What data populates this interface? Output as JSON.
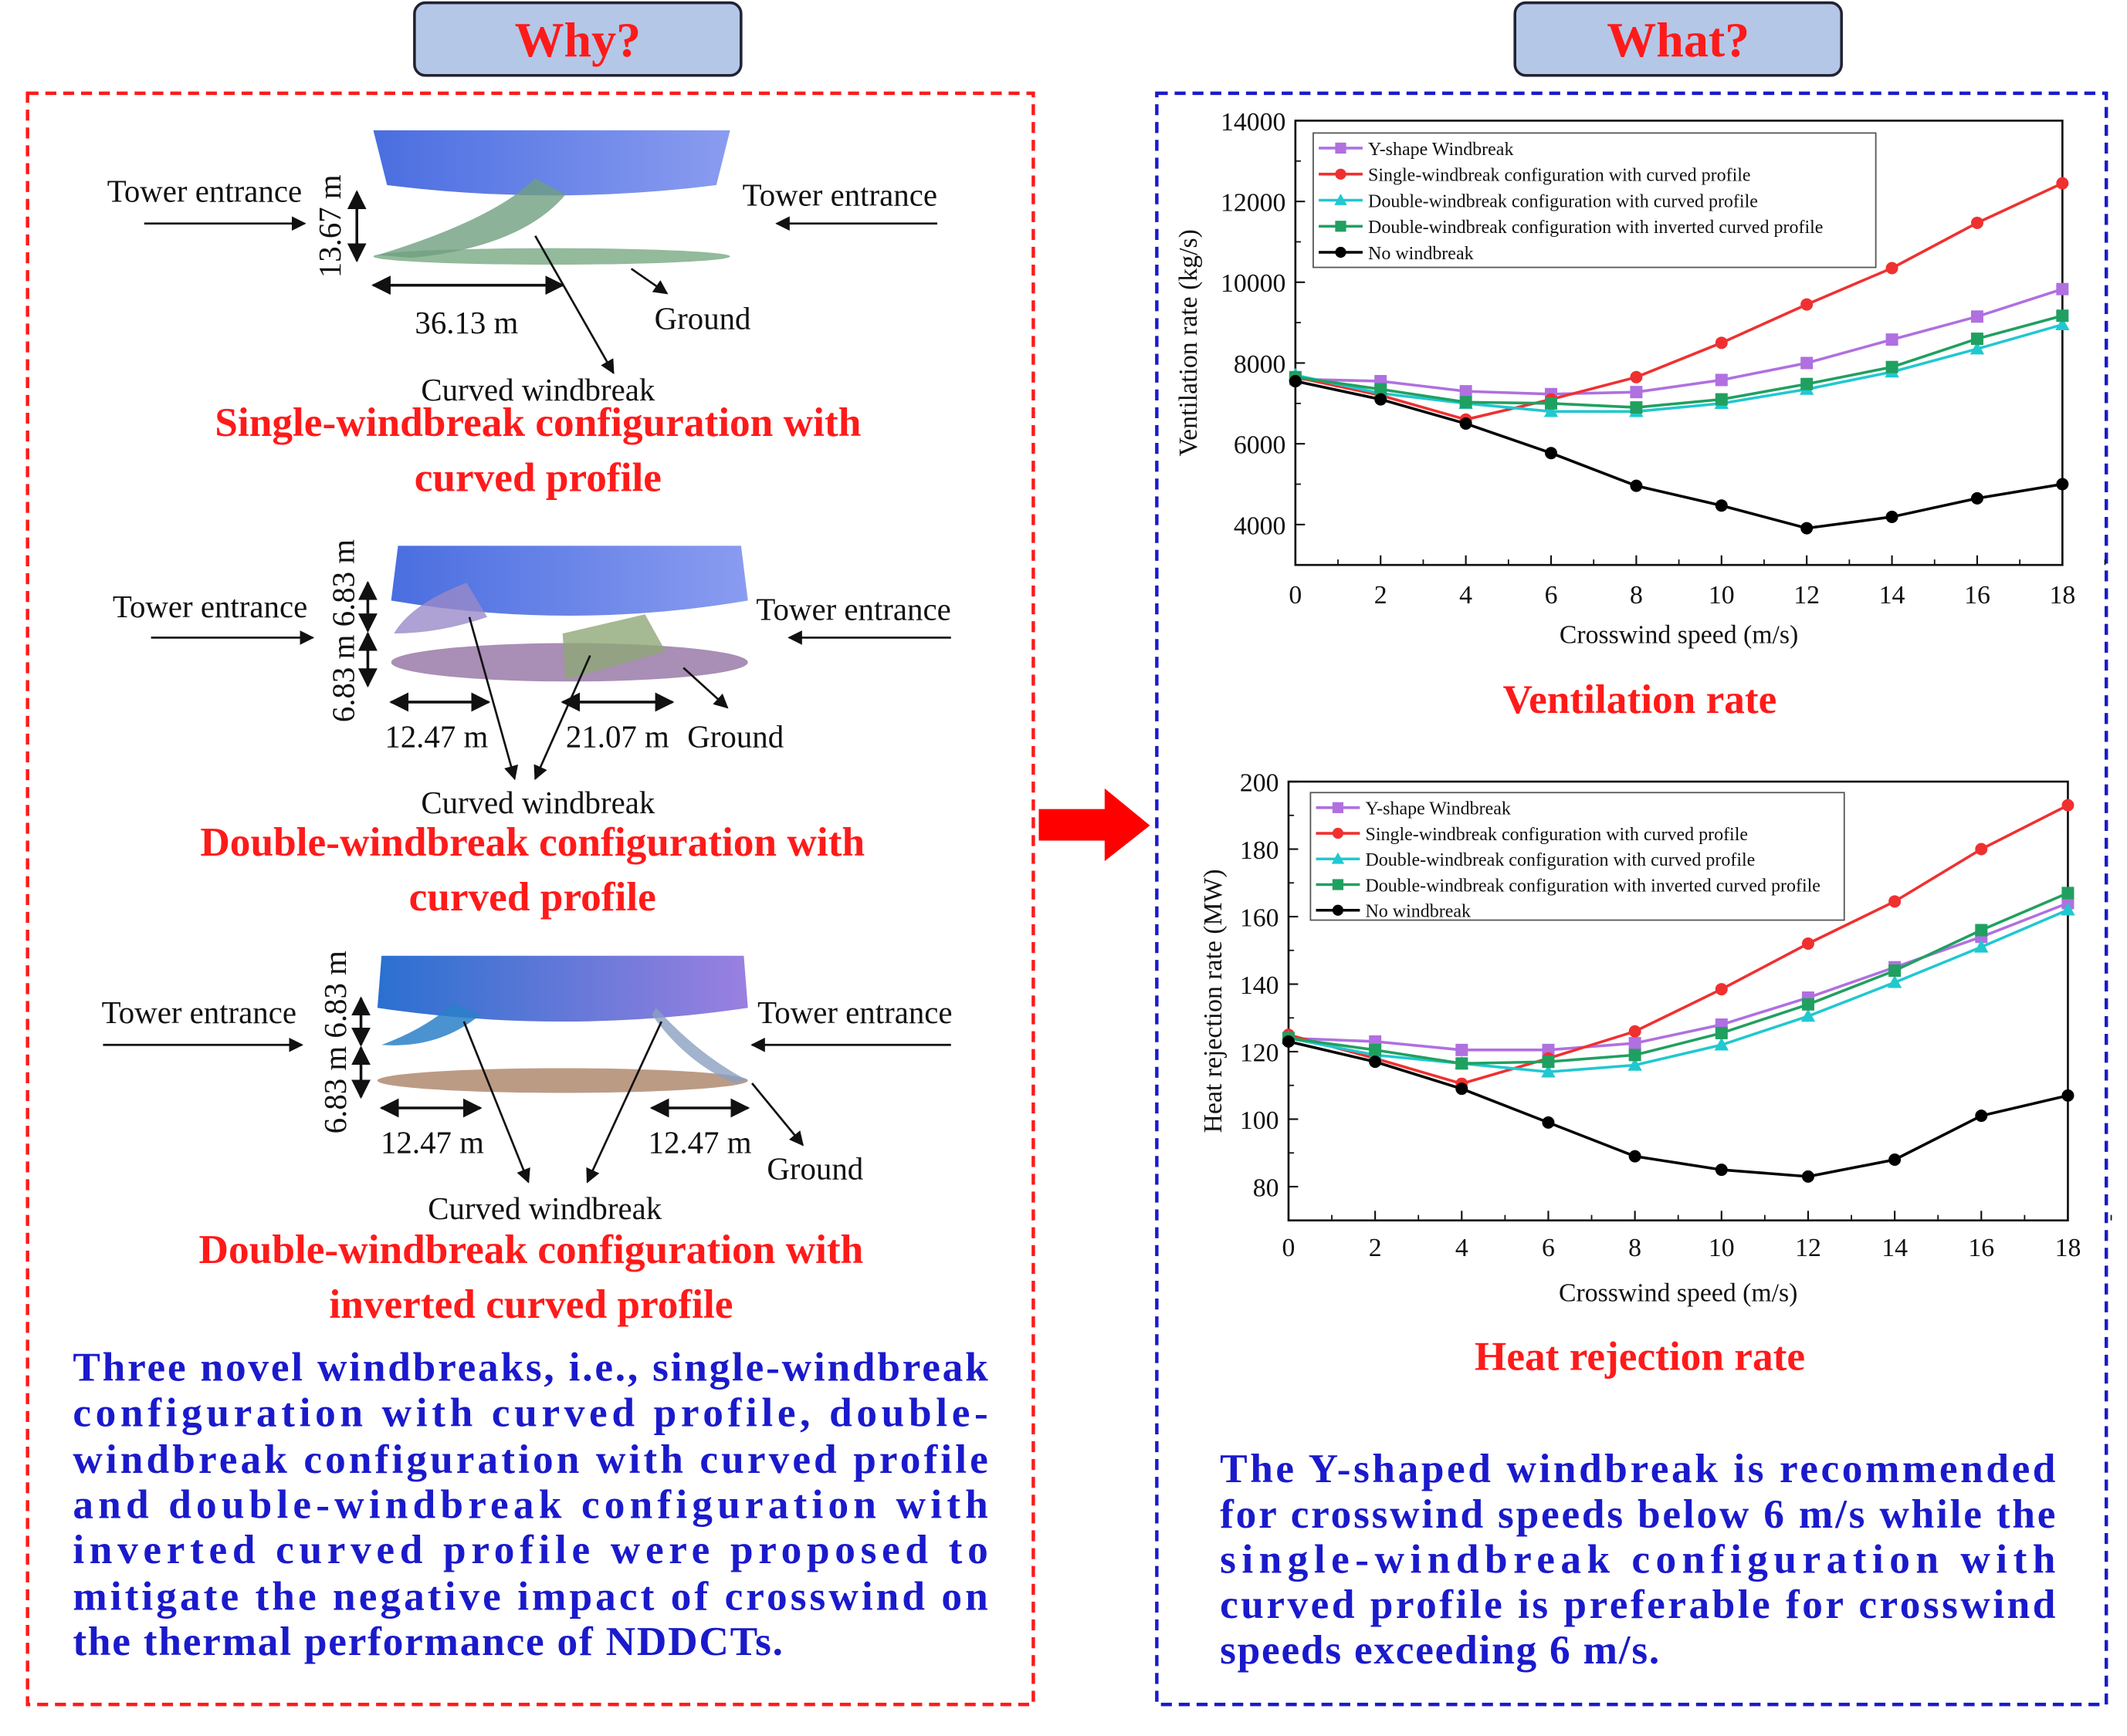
{
  "headers": {
    "why": "Why?",
    "what": "What?"
  },
  "diagrams": [
    {
      "tower_left": "Tower entrance",
      "tower_right": "Tower entrance",
      "height": "13.67 m",
      "width": "36.13 m",
      "ground": "Ground",
      "windbreak": "Curved windbreak",
      "title_lines": [
        "Single-windbreak configuration with",
        "curved profile"
      ]
    },
    {
      "tower_left": "Tower entrance",
      "tower_right": "Tower entrance",
      "height": "6.83 m 6.83 m",
      "width_left": "12.47 m",
      "width_right": "21.07 m",
      "ground": "Ground",
      "windbreak": "Curved windbreak",
      "title_lines": [
        "Double-windbreak configuration with",
        "curved profile"
      ]
    },
    {
      "tower_left": "Tower entrance",
      "tower_right": "Tower entrance",
      "height": "6.83 m 6.83 m",
      "width_left": "12.47 m",
      "width_right": "12.47 m",
      "ground": "Ground",
      "windbreak": "Curved windbreak",
      "title_lines": [
        "Double-windbreak configuration with",
        "inverted curved profile"
      ]
    }
  ],
  "left_summary_lines": [
    "Three novel windbreaks, i.e., single-windbreak",
    "configuration with curved profile, double-",
    "windbreak configuration with curved profile",
    "and double-windbreak configuration with",
    "inverted curved profile were proposed to",
    "mitigate the negative impact of crosswind on",
    "the thermal performance of NDDCTs."
  ],
  "right_summary_lines": [
    "The Y-shaped windbreak is recommended",
    "for crosswind speeds below 6 m/s while the",
    "single-windbreak configuration with",
    "curved profile is preferable for crosswind",
    "speeds exceeding 6 m/s."
  ],
  "colors": {
    "left_border": "#ff1a1a",
    "right_border": "#1a1acc",
    "header_fill": "#b4c7e7",
    "arrow": "#ff0000"
  },
  "chart_data": [
    {
      "type": "line",
      "caption": "Ventilation rate",
      "xlabel": "Crosswind speed (m/s)",
      "ylabel": "Ventilation rate (kg/s)",
      "xlim": [
        0,
        18
      ],
      "ylim": [
        3000,
        14000
      ],
      "xticks": [
        0,
        2,
        4,
        6,
        8,
        10,
        12,
        14,
        16,
        18
      ],
      "yticks": [
        4000,
        6000,
        8000,
        10000,
        12000,
        14000
      ],
      "legend": "top-left",
      "x": [
        0,
        2,
        4,
        6,
        8,
        10,
        12,
        14,
        16,
        18
      ],
      "series": [
        {
          "name": "Y-shape Windbreak",
          "color": "#b070e0",
          "marker": "square",
          "values": [
            7600,
            7550,
            7300,
            7230,
            7280,
            7580,
            8000,
            8580,
            9150,
            9830
          ]
        },
        {
          "name": "Single-windbreak configuration with curved profile",
          "color": "#f03030",
          "marker": "circle",
          "values": [
            7650,
            7200,
            6600,
            7100,
            7650,
            8500,
            9450,
            10350,
            11470,
            12450
          ]
        },
        {
          "name": "Double-windbreak configuration with curved profile",
          "color": "#20c8d0",
          "marker": "triangle",
          "values": [
            7700,
            7250,
            7000,
            6800,
            6800,
            7000,
            7350,
            7780,
            8350,
            8950
          ]
        },
        {
          "name": "Double-windbreak configuration with inverted curved profile",
          "color": "#20a060",
          "marker": "square",
          "values": [
            7650,
            7350,
            7030,
            7000,
            6900,
            7100,
            7480,
            7900,
            8600,
            9170
          ]
        },
        {
          "name": "No windbreak",
          "color": "#000000",
          "marker": "circle",
          "values": [
            7550,
            7100,
            6500,
            5770,
            4960,
            4470,
            3910,
            4190,
            4650,
            5000
          ]
        }
      ]
    },
    {
      "type": "line",
      "caption": "Heat rejection rate",
      "xlabel": "Crosswind speed (m/s)",
      "ylabel": "Heat rejection rate (MW)",
      "xlim": [
        0,
        18
      ],
      "ylim": [
        70,
        200
      ],
      "xticks": [
        0,
        2,
        4,
        6,
        8,
        10,
        12,
        14,
        16,
        18
      ],
      "yticks": [
        80,
        100,
        120,
        140,
        160,
        180,
        200
      ],
      "legend": "top-left",
      "x": [
        0,
        2,
        4,
        6,
        8,
        10,
        12,
        14,
        16,
        18
      ],
      "series": [
        {
          "name": "Y-shape Windbreak",
          "color": "#b070e0",
          "marker": "square",
          "values": [
            124,
            123,
            120.5,
            120.5,
            122.5,
            128,
            136,
            145,
            154,
            164
          ]
        },
        {
          "name": "Single-windbreak configuration with curved profile",
          "color": "#f03030",
          "marker": "circle",
          "values": [
            125,
            118,
            110.5,
            118,
            126,
            138.5,
            152,
            164.5,
            180,
            193
          ]
        },
        {
          "name": "Double-windbreak configuration with curved profile",
          "color": "#20c8d0",
          "marker": "triangle",
          "values": [
            124,
            119,
            116.5,
            114,
            116,
            122,
            130.5,
            140.5,
            151,
            162
          ]
        },
        {
          "name": "Double-windbreak configuration with inverted curved profile",
          "color": "#20a060",
          "marker": "square",
          "values": [
            124,
            120.5,
            116.5,
            117,
            119,
            125.5,
            134,
            144,
            156,
            167
          ]
        },
        {
          "name": "No windbreak",
          "color": "#000000",
          "marker": "circle",
          "values": [
            123,
            117,
            109,
            99,
            89,
            85,
            83,
            88,
            101,
            107
          ]
        }
      ]
    }
  ]
}
